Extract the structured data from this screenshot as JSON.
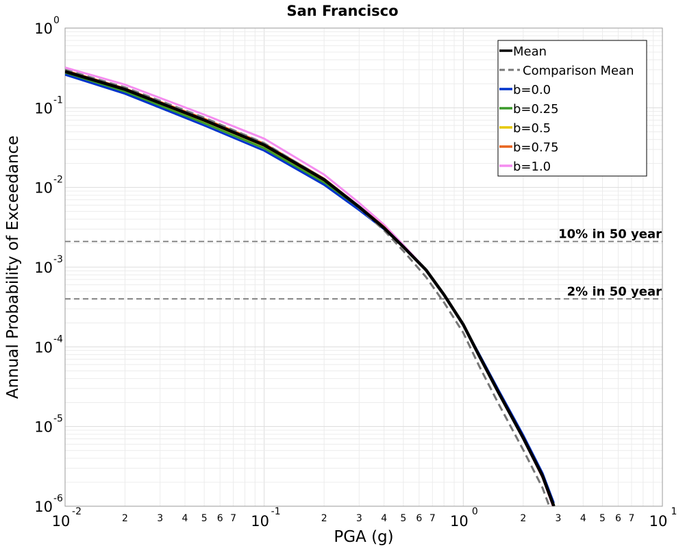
{
  "chart_data": {
    "type": "line",
    "title": "San Francisco",
    "xlabel": "PGA (g)",
    "ylabel": "Annual Probability of Exceedance",
    "xscale": "log",
    "yscale": "log",
    "xlim": [
      0.01,
      10
    ],
    "ylim": [
      1e-06,
      1
    ],
    "grid": true,
    "legend_position": "top-right",
    "x_major_ticks": [
      {
        "value": 0.01,
        "base": "10",
        "exp": "-2"
      },
      {
        "value": 0.1,
        "base": "10",
        "exp": "-1"
      },
      {
        "value": 1,
        "base": "10",
        "exp": "0"
      },
      {
        "value": 10,
        "base": "10",
        "exp": "1"
      }
    ],
    "x_minor_ticks": [
      {
        "value": 0.02,
        "label": "2"
      },
      {
        "value": 0.03,
        "label": "3"
      },
      {
        "value": 0.04,
        "label": "4"
      },
      {
        "value": 0.05,
        "label": "5"
      },
      {
        "value": 0.06,
        "label": "6"
      },
      {
        "value": 0.07,
        "label": "7"
      },
      {
        "value": 0.2,
        "label": "2"
      },
      {
        "value": 0.3,
        "label": "3"
      },
      {
        "value": 0.4,
        "label": "4"
      },
      {
        "value": 0.5,
        "label": "5"
      },
      {
        "value": 0.6,
        "label": "6"
      },
      {
        "value": 0.7,
        "label": "7"
      },
      {
        "value": 2,
        "label": "2"
      },
      {
        "value": 3,
        "label": "3"
      },
      {
        "value": 4,
        "label": "4"
      },
      {
        "value": 5,
        "label": "5"
      },
      {
        "value": 6,
        "label": "6"
      },
      {
        "value": 7,
        "label": "7"
      }
    ],
    "y_major_ticks": [
      {
        "value": 1,
        "base": "10",
        "exp": "0"
      },
      {
        "value": 0.1,
        "base": "10",
        "exp": "-1"
      },
      {
        "value": 0.01,
        "base": "10",
        "exp": "-2"
      },
      {
        "value": 0.001,
        "base": "10",
        "exp": "-3"
      },
      {
        "value": 0.0001,
        "base": "10",
        "exp": "-4"
      },
      {
        "value": 1e-05,
        "base": "10",
        "exp": "-5"
      },
      {
        "value": 1e-06,
        "base": "10",
        "exp": "-6"
      }
    ],
    "x": [
      0.01,
      0.02,
      0.05,
      0.1,
      0.2,
      0.3,
      0.4,
      0.5,
      0.65,
      0.8,
      1.0,
      1.2,
      1.5,
      2.0,
      2.5,
      2.85
    ],
    "series": [
      {
        "name": "Mean",
        "color": "#000000",
        "style": "solid",
        "width": 4.5,
        "values": [
          0.285,
          0.17,
          0.07,
          0.034,
          0.0125,
          0.0057,
          0.0031,
          0.0018,
          0.00092,
          0.00045,
          0.00019,
          7.8e-05,
          2.7e-05,
          7.2e-06,
          2.4e-06,
          1e-06
        ]
      },
      {
        "name": "Comparison Mean",
        "color": "#777777",
        "style": "dashed",
        "width": 3,
        "values": [
          0.3,
          0.18,
          0.075,
          0.036,
          0.0128,
          0.0055,
          0.0029,
          0.0016,
          0.00075,
          0.00036,
          0.00015,
          5.8e-05,
          1.95e-05,
          5.1e-06,
          1.7e-06,
          7e-07
        ]
      },
      {
        "name": "b=0.0",
        "color": "#0033cc",
        "style": "solid",
        "width": 3,
        "values": [
          0.26,
          0.15,
          0.06,
          0.029,
          0.0108,
          0.0052,
          0.003,
          0.0018,
          0.00092,
          0.00045,
          0.00019,
          8.2e-05,
          2.9e-05,
          7.8e-06,
          2.6e-06,
          1.1e-06
        ]
      },
      {
        "name": "b=0.25",
        "color": "#3a9a2a",
        "style": "solid",
        "width": 3,
        "values": [
          0.27,
          0.158,
          0.064,
          0.031,
          0.0114,
          0.0054,
          0.003,
          0.0018,
          0.00092,
          0.00045,
          0.00019,
          8e-05,
          2.8e-05,
          7.5e-06,
          2.5e-06,
          1.05e-06
        ]
      },
      {
        "name": "b=0.5",
        "color": "#e6c800",
        "style": "solid",
        "width": 3,
        "values": [
          0.28,
          0.165,
          0.068,
          0.033,
          0.0121,
          0.0056,
          0.0031,
          0.0018,
          0.00092,
          0.00045,
          0.00019,
          7.9e-05,
          2.75e-05,
          7.3e-06,
          2.4e-06,
          1e-06
        ]
      },
      {
        "name": "b=0.75",
        "color": "#e8641e",
        "style": "solid",
        "width": 3,
        "values": [
          0.295,
          0.175,
          0.073,
          0.0355,
          0.0129,
          0.0058,
          0.0032,
          0.0018,
          0.00092,
          0.00045,
          0.00019,
          7.8e-05,
          2.7e-05,
          7.1e-06,
          2.3e-06,
          9.5e-07
        ]
      },
      {
        "name": "b=1.0",
        "color": "#f58cf0",
        "style": "solid",
        "width": 3,
        "values": [
          0.32,
          0.195,
          0.082,
          0.041,
          0.0145,
          0.0064,
          0.0034,
          0.0019,
          0.00093,
          0.00045,
          0.00019,
          7.7e-05,
          2.65e-05,
          7e-06,
          2.3e-06,
          9.3e-07
        ]
      }
    ],
    "reference_lines": [
      {
        "label": "10% in 50 year",
        "y": 0.0021
      },
      {
        "label": "2% in 50 year",
        "y": 0.0004
      }
    ]
  }
}
